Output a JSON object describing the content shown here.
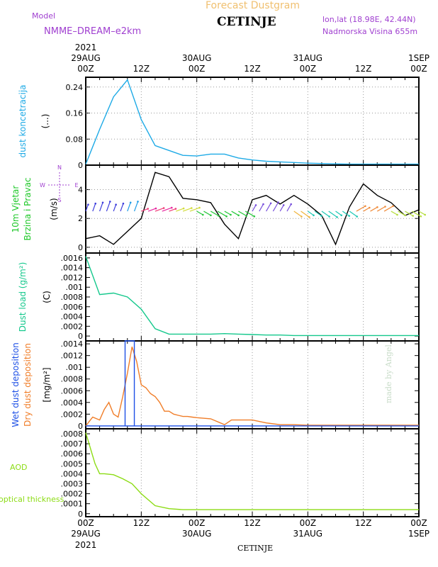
{
  "header": {
    "title": "Forecast Dustgram",
    "location": "CETINJE",
    "model_label": "Model",
    "model_name": "NMME–DREAM–e2km",
    "lonlat": "lon,lat (18.98E, 42.44N)",
    "altitude": "Nadmorska Visina 655m",
    "watermark": "made by Angel",
    "footer_location": "CETINJE"
  },
  "colors": {
    "title": "#f0c070",
    "purple": "#a040d0",
    "concentration": "#1eaae6",
    "wind_label": "#1ec828",
    "dust_load": "#14c88c",
    "wet": "#1e50e6",
    "dry": "#f07d28",
    "aod": "#8cdc14",
    "watermark": "#c8dcc8"
  },
  "time_axis": {
    "top_labels": [
      {
        "l1": "2021",
        "l2": "29AUG",
        "l3": "00Z"
      },
      {
        "l1": "",
        "l2": "",
        "l3": "12Z"
      },
      {
        "l1": "",
        "l2": "30AUG",
        "l3": "00Z"
      },
      {
        "l1": "",
        "l2": "",
        "l3": "12Z"
      },
      {
        "l1": "",
        "l2": "31AUG",
        "l3": "00Z"
      },
      {
        "l1": "",
        "l2": "",
        "l3": "12Z"
      },
      {
        "l1": "",
        "l2": "1SEP",
        "l3": "00Z"
      }
    ],
    "bottom_labels": [
      {
        "l1": "00Z",
        "l2": "29AUG",
        "l3": "2021"
      },
      {
        "l1": "12Z",
        "l2": "",
        "l3": ""
      },
      {
        "l1": "00Z",
        "l2": "30AUG",
        "l3": ""
      },
      {
        "l1": "12Z",
        "l2": "",
        "l3": ""
      },
      {
        "l1": "00Z",
        "l2": "31AUG",
        "l3": ""
      },
      {
        "l1": "12Z",
        "l2": "",
        "l3": ""
      },
      {
        "l1": "00Z",
        "l2": "1SEP",
        "l3": ""
      }
    ]
  },
  "compass": {
    "n": "N",
    "s": "S",
    "w": "W",
    "e": "E"
  },
  "chart_data": [
    {
      "type": "line",
      "ylabel": "(...)",
      "side_label": [
        "dust koncetracija"
      ],
      "x_hours": [
        0,
        3,
        6,
        9,
        12,
        15,
        18,
        21,
        24,
        27,
        30,
        33,
        36,
        39,
        42,
        45,
        48,
        51,
        54,
        57,
        60,
        63,
        66,
        69,
        72
      ],
      "yticks": [
        0,
        0.08,
        0.16,
        0.24
      ],
      "ylim": [
        0,
        0.27
      ],
      "series": [
        {
          "values": [
            0.003,
            0.11,
            0.21,
            0.262,
            0.14,
            0.06,
            0.045,
            0.03,
            0.028,
            0.034,
            0.034,
            0.022,
            0.016,
            0.012,
            0.01,
            0.008,
            0.006,
            0.005,
            0.004,
            0.003,
            0.003,
            0.003,
            0.003,
            0.003,
            0.003
          ]
        }
      ]
    },
    {
      "type": "line",
      "ylabel": "(m/s)",
      "side_label": [
        "10m Vjetar",
        "Brzina i Pravac"
      ],
      "x_hours": [
        0,
        3,
        6,
        9,
        12,
        15,
        18,
        21,
        24,
        27,
        30,
        33,
        36,
        39,
        42,
        45,
        48,
        51,
        54,
        57,
        60,
        63,
        66,
        69,
        72
      ],
      "yticks": [
        0,
        2,
        4
      ],
      "ylim": [
        -0.4,
        5.7
      ],
      "series": [
        {
          "name": "speed",
          "values": [
            0.6,
            0.8,
            0.2,
            1.1,
            2.0,
            5.2,
            4.9,
            3.4,
            3.3,
            3.1,
            1.6,
            0.6,
            3.3,
            3.6,
            3.0,
            3.6,
            3.0,
            2.2,
            0.2,
            2.8,
            4.4,
            3.6,
            3.1,
            2.2,
            2.6
          ]
        },
        {
          "name": "wind_arrow_baseline",
          "values": [
            2.5,
            2.5,
            2.5,
            2.5,
            2.5,
            2.5,
            2.5,
            2.5,
            2.5,
            2.5,
            2.5,
            2.5,
            2.5,
            2.5,
            2.5,
            2.5,
            2.5,
            2.5,
            2.5,
            2.5,
            2.5,
            2.5,
            2.5,
            2.5,
            2.5
          ]
        }
      ]
    },
    {
      "type": "line",
      "ylabel": "(C)",
      "side_label": [
        "Dust load (g/m²)"
      ],
      "x_hours": [
        0,
        3,
        6,
        9,
        12,
        15,
        18,
        21,
        24,
        27,
        30,
        33,
        36,
        39,
        42,
        45,
        48,
        51,
        54,
        57,
        60,
        63,
        66,
        69,
        72
      ],
      "yticks": [
        0,
        0.0002,
        0.0004,
        0.0006,
        0.0008,
        0.001,
        0.0012,
        0.0014,
        0.0016
      ],
      "ylim": [
        -0.0001,
        0.0017
      ],
      "series": [
        {
          "values": [
            0.00163,
            0.00085,
            0.00088,
            0.0008,
            0.00055,
            0.00015,
            4e-05,
            4e-05,
            4e-05,
            4e-05,
            5e-05,
            4e-05,
            3e-05,
            2e-05,
            2e-05,
            1e-05,
            1e-05,
            1e-05,
            1e-05,
            1e-05,
            1e-05,
            1e-05,
            1e-05,
            1e-05,
            1e-05
          ]
        }
      ]
    },
    {
      "type": "line",
      "ylabel": "[mg/m²]",
      "side_label": [
        "Wet dust deposition",
        "Dry dust deposition"
      ],
      "x_hours": [
        0,
        1.5,
        3,
        4,
        5,
        6,
        7,
        8,
        9,
        10,
        11,
        12,
        13,
        14,
        15,
        16,
        17,
        18,
        19,
        20,
        21,
        22,
        23,
        24,
        27,
        30,
        31.5,
        33,
        36,
        39,
        42,
        45,
        48,
        54,
        60,
        66,
        72
      ],
      "yticks": [
        0,
        0.0002,
        0.0004,
        0.0006,
        0.0008,
        0.001,
        0.0012,
        0.0014
      ],
      "ylim": [
        -5e-05,
        0.00145
      ],
      "series": [
        {
          "name": "Dry",
          "values": [
            0,
            0.00015,
            0.0001,
            0.00028,
            0.0004,
            0.0002,
            0.00015,
            0.0005,
            0.0009,
            0.00135,
            0.0011,
            0.0007,
            0.00065,
            0.00055,
            0.0005,
            0.0004,
            0.00025,
            0.00025,
            0.0002,
            0.00018,
            0.00016,
            0.00016,
            0.00015,
            0.00014,
            0.00012,
            2e-05,
            0.0001,
            0.0001,
            0.0001,
            5e-05,
            2e-05,
            2e-05,
            1e-05,
            1e-05,
            1e-05,
            1e-05,
            1e-05
          ]
        },
        {
          "name": "Wet",
          "values": [
            0,
            0,
            0,
            0,
            0,
            0,
            0,
            0,
            0,
            0,
            0,
            0,
            0,
            0,
            0,
            0,
            0,
            0,
            0,
            0,
            0,
            0,
            0,
            0,
            0,
            0,
            0,
            0,
            0,
            0,
            0,
            0,
            0,
            0,
            0,
            0,
            0
          ]
        }
      ],
      "wet_pulse": {
        "start_hour": 8.5,
        "end_hour": 10.5,
        "value": 0.0015
      }
    },
    {
      "type": "line",
      "ylabel": "",
      "side_label": [
        "AOD",
        "optical thickness"
      ],
      "x_hours": [
        0,
        2,
        3,
        4,
        6,
        8,
        10,
        12,
        15,
        18,
        21,
        24,
        27,
        30,
        33,
        36,
        39,
        42,
        45,
        48,
        51,
        54,
        57,
        60,
        63,
        66,
        69,
        72
      ],
      "yticks": [
        0,
        0.0001,
        0.0002,
        0.0003,
        0.0004,
        0.0005,
        0.0006,
        0.0007,
        0.0008
      ],
      "ylim": [
        -3e-05,
        0.00085
      ],
      "series": [
        {
          "values": [
            0.00081,
            0.0005,
            0.0004,
            0.0004,
            0.00039,
            0.00035,
            0.0003,
            0.0002,
            8e-05,
            5e-05,
            4e-05,
            4e-05,
            4e-05,
            4e-05,
            4e-05,
            4e-05,
            4e-05,
            4e-05,
            4e-05,
            4e-05,
            4e-05,
            4e-05,
            4e-05,
            4e-05,
            4e-05,
            4e-05,
            4e-05,
            4e-05
          ]
        }
      ]
    }
  ]
}
